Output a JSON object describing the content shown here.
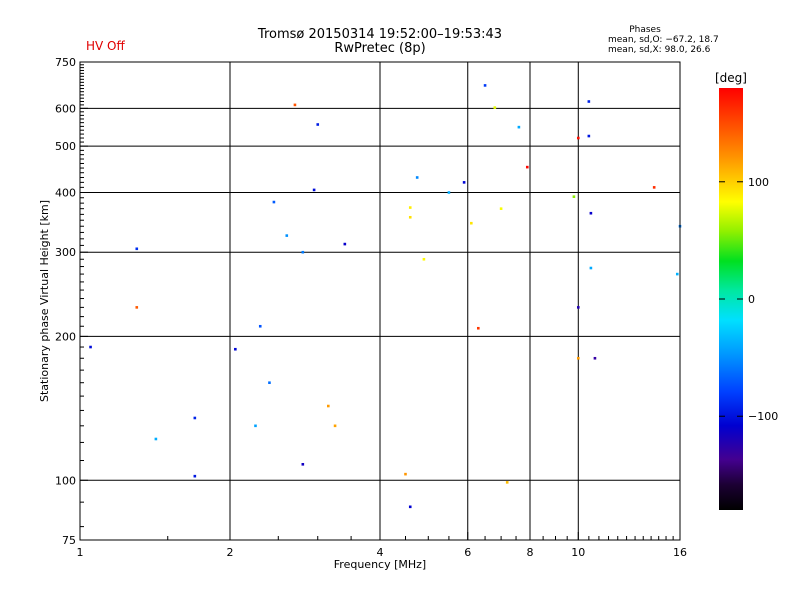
{
  "chart_data": {
    "type": "scatter",
    "title": "Tromsø 20150314 19:52:00–19:53:43",
    "subtitle": "RwPretec (8p)",
    "status": "HV Off",
    "xlabel": "Frequency [MHz]",
    "ylabel": "Stationary phase Virtual Height [km]",
    "x_scale": "log",
    "y_scale": "log",
    "xlim": [
      1,
      16
    ],
    "ylim": [
      75,
      750
    ],
    "x_ticks": [
      {
        "v": 1,
        "label": "1"
      },
      {
        "v": 2,
        "label": "2"
      },
      {
        "v": 4,
        "label": "4"
      },
      {
        "v": 6,
        "label": "6"
      },
      {
        "v": 8,
        "label": "8"
      },
      {
        "v": 10,
        "label": "10"
      },
      {
        "v": 16,
        "label": "16"
      }
    ],
    "x_grid": [
      2,
      4,
      6,
      8,
      10
    ],
    "y_ticks": [
      {
        "v": 75,
        "label": "75"
      },
      {
        "v": 100,
        "label": "100"
      },
      {
        "v": 200,
        "label": "200"
      },
      {
        "v": 300,
        "label": "300"
      },
      {
        "v": 400,
        "label": "400"
      },
      {
        "v": 500,
        "label": "500"
      },
      {
        "v": 600,
        "label": "600"
      },
      {
        "v": 750,
        "label": "750"
      }
    ],
    "y_grid": [
      100,
      200,
      300,
      400,
      500,
      600
    ],
    "phases": {
      "heading": "Phases",
      "line_o": "mean, sd,O: −67.2, 18.7",
      "line_x": "mean, sd,X:  98.0, 26.6"
    },
    "colorbar": {
      "label": "[deg]",
      "range": [
        -180,
        180
      ],
      "ticks": [
        {
          "v": 100,
          "label": "100"
        },
        {
          "v": 0,
          "label": "0"
        },
        {
          "v": -100,
          "label": "−100"
        }
      ]
    },
    "points": [
      [
        1.7,
        135,
        -95
      ],
      [
        2.05,
        188,
        -108
      ],
      [
        2.45,
        382,
        -72
      ],
      [
        2.95,
        405,
        -105
      ],
      [
        3.4,
        312,
        -112
      ],
      [
        3.0,
        555,
        -98
      ],
      [
        4.6,
        372,
        97
      ],
      [
        3.15,
        143,
        128
      ],
      [
        2.25,
        130,
        -45
      ],
      [
        1.42,
        122,
        -40
      ],
      [
        2.4,
        160,
        -65
      ],
      [
        2.8,
        300,
        -60
      ],
      [
        2.3,
        210,
        -75
      ],
      [
        2.6,
        325,
        -52
      ],
      [
        3.25,
        130,
        125
      ],
      [
        2.7,
        610,
        152
      ],
      [
        1.05,
        190,
        -105
      ],
      [
        1.3,
        305,
        -90
      ],
      [
        1.3,
        230,
        150
      ],
      [
        1.7,
        102,
        -100
      ],
      [
        2.8,
        108,
        -115
      ],
      [
        4.5,
        103,
        130
      ],
      [
        4.6,
        88,
        -110
      ],
      [
        6.3,
        208,
        162
      ],
      [
        6.5,
        670,
        -85
      ],
      [
        6.8,
        602,
        82
      ],
      [
        7.6,
        548,
        -42
      ],
      [
        7.0,
        370,
        88
      ],
      [
        7.2,
        99,
        115
      ],
      [
        7.9,
        452,
        178
      ],
      [
        9.8,
        392,
        58
      ],
      [
        10.0,
        520,
        175
      ],
      [
        10.0,
        230,
        -120
      ],
      [
        10.0,
        180,
        128
      ],
      [
        10.5,
        620,
        -95
      ],
      [
        10.5,
        525,
        -100
      ],
      [
        10.6,
        362,
        -112
      ],
      [
        10.6,
        278,
        -42
      ],
      [
        10.8,
        180,
        -125
      ],
      [
        14.2,
        410,
        165
      ],
      [
        16.0,
        340,
        -58
      ],
      [
        15.8,
        270,
        -38
      ],
      [
        6.1,
        345,
        100
      ],
      [
        5.5,
        400,
        -40
      ],
      [
        5.9,
        420,
        -108
      ],
      [
        4.9,
        290,
        92
      ],
      [
        4.75,
        430,
        -55
      ],
      [
        4.6,
        355,
        102
      ]
    ]
  }
}
